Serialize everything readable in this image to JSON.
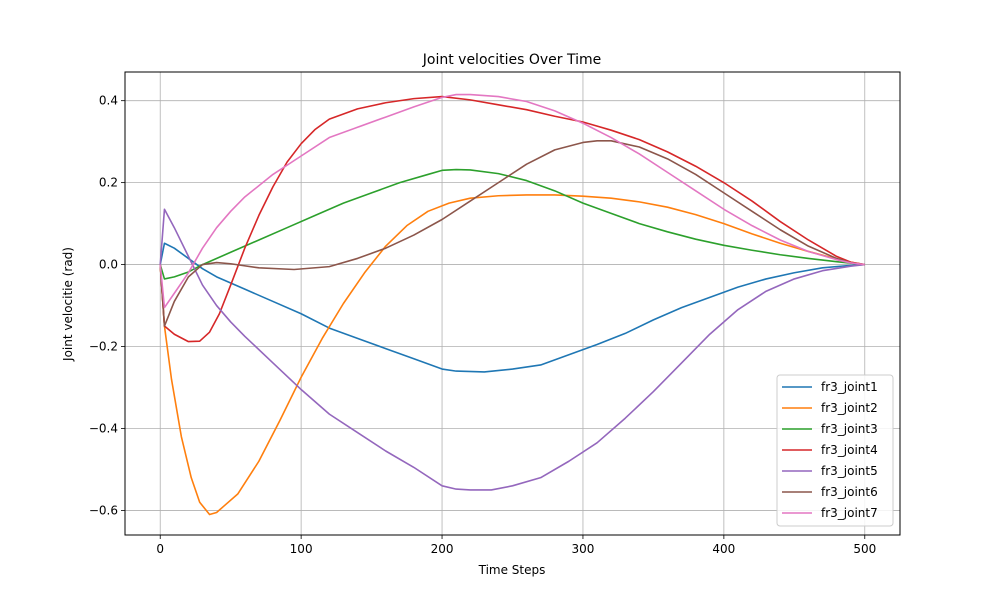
{
  "chart_data": {
    "type": "line",
    "title": "Joint velocities Over Time",
    "xlabel": "Time Steps",
    "ylabel": "Joint velocitie (rad)",
    "xlim": [
      -25,
      525
    ],
    "ylim": [
      -0.66,
      0.47
    ],
    "x_ticks": [
      0,
      100,
      200,
      300,
      400,
      500
    ],
    "y_ticks": [
      -0.6,
      -0.4,
      -0.2,
      0.0,
      0.2,
      0.4
    ],
    "x_tick_labels": [
      "0",
      "100",
      "200",
      "300",
      "400",
      "500"
    ],
    "y_tick_labels": [
      "−0.6",
      "−0.4",
      "−0.2",
      "0.0",
      "0.2",
      "0.4"
    ],
    "grid": true,
    "legend_position": "bottom-right",
    "series": [
      {
        "name": "fr3_joint1",
        "color": "#1f77b4",
        "points": [
          [
            0,
            0
          ],
          [
            3,
            0.052
          ],
          [
            10,
            0.04
          ],
          [
            20,
            0.015
          ],
          [
            30,
            -0.01
          ],
          [
            40,
            -0.03
          ],
          [
            60,
            -0.06
          ],
          [
            80,
            -0.09
          ],
          [
            100,
            -0.12
          ],
          [
            120,
            -0.155
          ],
          [
            140,
            -0.18
          ],
          [
            160,
            -0.205
          ],
          [
            180,
            -0.23
          ],
          [
            200,
            -0.255
          ],
          [
            210,
            -0.26
          ],
          [
            230,
            -0.262
          ],
          [
            250,
            -0.255
          ],
          [
            270,
            -0.245
          ],
          [
            290,
            -0.22
          ],
          [
            310,
            -0.195
          ],
          [
            330,
            -0.168
          ],
          [
            350,
            -0.135
          ],
          [
            370,
            -0.105
          ],
          [
            390,
            -0.08
          ],
          [
            410,
            -0.055
          ],
          [
            430,
            -0.035
          ],
          [
            450,
            -0.02
          ],
          [
            470,
            -0.008
          ],
          [
            490,
            -0.002
          ],
          [
            500,
            0
          ]
        ]
      },
      {
        "name": "fr3_joint2",
        "color": "#ff7f0e",
        "points": [
          [
            0,
            0
          ],
          [
            3,
            -0.15
          ],
          [
            8,
            -0.28
          ],
          [
            15,
            -0.42
          ],
          [
            22,
            -0.52
          ],
          [
            28,
            -0.58
          ],
          [
            35,
            -0.61
          ],
          [
            40,
            -0.605
          ],
          [
            45,
            -0.59
          ],
          [
            55,
            -0.56
          ],
          [
            70,
            -0.48
          ],
          [
            85,
            -0.38
          ],
          [
            100,
            -0.275
          ],
          [
            115,
            -0.18
          ],
          [
            130,
            -0.095
          ],
          [
            145,
            -0.02
          ],
          [
            160,
            0.045
          ],
          [
            175,
            0.095
          ],
          [
            190,
            0.13
          ],
          [
            205,
            0.15
          ],
          [
            220,
            0.162
          ],
          [
            240,
            0.168
          ],
          [
            260,
            0.17
          ],
          [
            280,
            0.17
          ],
          [
            300,
            0.167
          ],
          [
            320,
            0.162
          ],
          [
            340,
            0.153
          ],
          [
            360,
            0.14
          ],
          [
            380,
            0.122
          ],
          [
            400,
            0.1
          ],
          [
            420,
            0.075
          ],
          [
            440,
            0.052
          ],
          [
            460,
            0.032
          ],
          [
            480,
            0.014
          ],
          [
            490,
            0.006
          ],
          [
            500,
            0
          ]
        ]
      },
      {
        "name": "fr3_joint3",
        "color": "#2ca02c",
        "points": [
          [
            0,
            0
          ],
          [
            3,
            -0.035
          ],
          [
            10,
            -0.03
          ],
          [
            20,
            -0.018
          ],
          [
            30,
            0
          ],
          [
            50,
            0.03
          ],
          [
            70,
            0.06
          ],
          [
            90,
            0.09
          ],
          [
            110,
            0.12
          ],
          [
            130,
            0.15
          ],
          [
            150,
            0.175
          ],
          [
            170,
            0.2
          ],
          [
            190,
            0.22
          ],
          [
            200,
            0.23
          ],
          [
            210,
            0.232
          ],
          [
            220,
            0.231
          ],
          [
            240,
            0.222
          ],
          [
            260,
            0.205
          ],
          [
            280,
            0.18
          ],
          [
            300,
            0.15
          ],
          [
            320,
            0.125
          ],
          [
            340,
            0.1
          ],
          [
            360,
            0.08
          ],
          [
            380,
            0.062
          ],
          [
            400,
            0.047
          ],
          [
            420,
            0.035
          ],
          [
            440,
            0.024
          ],
          [
            460,
            0.015
          ],
          [
            480,
            0.007
          ],
          [
            500,
            0
          ]
        ]
      },
      {
        "name": "fr3_joint4",
        "color": "#d62728",
        "points": [
          [
            0,
            0
          ],
          [
            3,
            -0.15
          ],
          [
            10,
            -0.17
          ],
          [
            20,
            -0.188
          ],
          [
            28,
            -0.187
          ],
          [
            35,
            -0.165
          ],
          [
            42,
            -0.12
          ],
          [
            50,
            -0.05
          ],
          [
            60,
            0.04
          ],
          [
            70,
            0.12
          ],
          [
            80,
            0.19
          ],
          [
            90,
            0.25
          ],
          [
            100,
            0.295
          ],
          [
            110,
            0.33
          ],
          [
            120,
            0.355
          ],
          [
            140,
            0.38
          ],
          [
            160,
            0.395
          ],
          [
            180,
            0.405
          ],
          [
            200,
            0.41
          ],
          [
            220,
            0.402
          ],
          [
            240,
            0.39
          ],
          [
            260,
            0.378
          ],
          [
            280,
            0.362
          ],
          [
            300,
            0.348
          ],
          [
            320,
            0.328
          ],
          [
            340,
            0.305
          ],
          [
            360,
            0.275
          ],
          [
            380,
            0.24
          ],
          [
            400,
            0.2
          ],
          [
            420,
            0.155
          ],
          [
            440,
            0.105
          ],
          [
            460,
            0.06
          ],
          [
            480,
            0.02
          ],
          [
            490,
            0.006
          ],
          [
            500,
            0
          ]
        ]
      },
      {
        "name": "fr3_joint5",
        "color": "#9467bd",
        "points": [
          [
            0,
            0
          ],
          [
            3,
            0.135
          ],
          [
            10,
            0.09
          ],
          [
            20,
            0.02
          ],
          [
            30,
            -0.05
          ],
          [
            40,
            -0.1
          ],
          [
            50,
            -0.14
          ],
          [
            60,
            -0.175
          ],
          [
            80,
            -0.24
          ],
          [
            100,
            -0.305
          ],
          [
            120,
            -0.365
          ],
          [
            140,
            -0.41
          ],
          [
            160,
            -0.455
          ],
          [
            180,
            -0.495
          ],
          [
            200,
            -0.54
          ],
          [
            210,
            -0.548
          ],
          [
            220,
            -0.55
          ],
          [
            235,
            -0.55
          ],
          [
            250,
            -0.54
          ],
          [
            270,
            -0.52
          ],
          [
            290,
            -0.48
          ],
          [
            310,
            -0.435
          ],
          [
            330,
            -0.375
          ],
          [
            350,
            -0.31
          ],
          [
            370,
            -0.24
          ],
          [
            390,
            -0.17
          ],
          [
            410,
            -0.11
          ],
          [
            430,
            -0.065
          ],
          [
            450,
            -0.035
          ],
          [
            470,
            -0.015
          ],
          [
            490,
            -0.004
          ],
          [
            500,
            0
          ]
        ]
      },
      {
        "name": "fr3_joint6",
        "color": "#8c564b",
        "points": [
          [
            0,
            0
          ],
          [
            3,
            -0.15
          ],
          [
            10,
            -0.09
          ],
          [
            20,
            -0.03
          ],
          [
            30,
            0
          ],
          [
            40,
            0.005
          ],
          [
            50,
            0.002
          ],
          [
            70,
            -0.008
          ],
          [
            95,
            -0.012
          ],
          [
            120,
            -0.005
          ],
          [
            140,
            0.015
          ],
          [
            160,
            0.04
          ],
          [
            180,
            0.072
          ],
          [
            200,
            0.11
          ],
          [
            220,
            0.155
          ],
          [
            240,
            0.2
          ],
          [
            260,
            0.245
          ],
          [
            280,
            0.28
          ],
          [
            300,
            0.298
          ],
          [
            310,
            0.302
          ],
          [
            320,
            0.302
          ],
          [
            340,
            0.287
          ],
          [
            360,
            0.258
          ],
          [
            380,
            0.22
          ],
          [
            400,
            0.175
          ],
          [
            420,
            0.13
          ],
          [
            440,
            0.085
          ],
          [
            460,
            0.045
          ],
          [
            480,
            0.015
          ],
          [
            490,
            0.004
          ],
          [
            500,
            0
          ]
        ]
      },
      {
        "name": "fr3_joint7",
        "color": "#e377c2",
        "points": [
          [
            0,
            0
          ],
          [
            3,
            -0.105
          ],
          [
            10,
            -0.07
          ],
          [
            20,
            -0.02
          ],
          [
            30,
            0.04
          ],
          [
            40,
            0.09
          ],
          [
            50,
            0.13
          ],
          [
            60,
            0.165
          ],
          [
            80,
            0.22
          ],
          [
            100,
            0.265
          ],
          [
            120,
            0.31
          ],
          [
            140,
            0.335
          ],
          [
            160,
            0.36
          ],
          [
            180,
            0.385
          ],
          [
            200,
            0.408
          ],
          [
            210,
            0.415
          ],
          [
            220,
            0.415
          ],
          [
            240,
            0.41
          ],
          [
            260,
            0.398
          ],
          [
            280,
            0.375
          ],
          [
            300,
            0.345
          ],
          [
            320,
            0.31
          ],
          [
            340,
            0.27
          ],
          [
            360,
            0.225
          ],
          [
            380,
            0.18
          ],
          [
            400,
            0.135
          ],
          [
            420,
            0.095
          ],
          [
            440,
            0.06
          ],
          [
            460,
            0.032
          ],
          [
            480,
            0.012
          ],
          [
            490,
            0.004
          ],
          [
            500,
            0
          ]
        ]
      }
    ]
  }
}
